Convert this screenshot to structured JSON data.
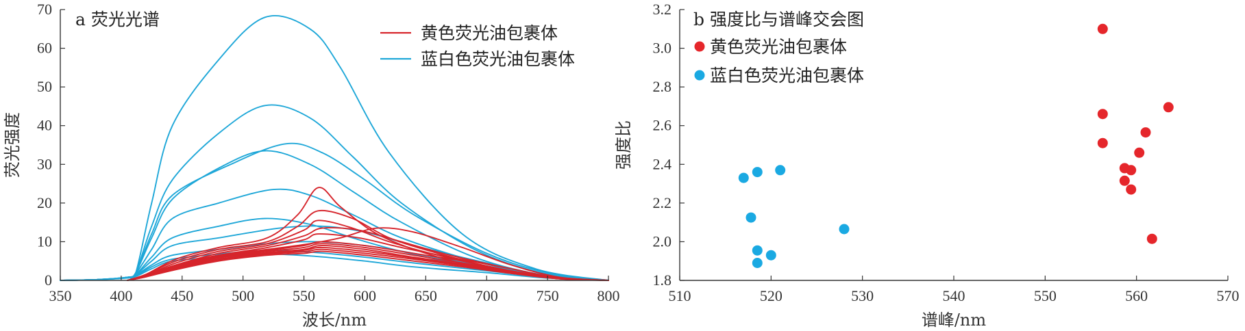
{
  "chart_data": [
    {
      "type": "line",
      "title": "a 荧光光谱",
      "xlabel": "波长/nm",
      "ylabel": "荧光强度",
      "xlim": [
        350,
        800
      ],
      "ylim": [
        0,
        70
      ],
      "xticks": [
        350,
        400,
        450,
        500,
        550,
        600,
        650,
        700,
        750,
        800
      ],
      "yticks": [
        0,
        10,
        20,
        30,
        40,
        50,
        60,
        70
      ],
      "legend_position": "top-right",
      "legend": [
        {
          "name": "黄色荧光油包裹体",
          "color": "#d6242b"
        },
        {
          "name": "蓝白色荧光油包裹体",
          "color": "#1ea7d8"
        }
      ],
      "groups": [
        {
          "name": "黄色荧光油包裹体",
          "color": "#d6242b",
          "series": [
            {
              "x": [
                405,
                420,
                445,
                480,
                520,
                545,
                562,
                580,
                610,
                650,
                700,
                750,
                800
              ],
              "y": [
                0,
                1.5,
                5.5,
                8.5,
                11,
                17,
                24,
                19,
                12,
                7,
                3,
                0.8,
                0
              ]
            },
            {
              "x": [
                405,
                420,
                445,
                480,
                520,
                545,
                562,
                590,
                620,
                660,
                710,
                760,
                800
              ],
              "y": [
                0,
                1.5,
                5,
                8,
                10,
                14,
                18,
                16,
                11,
                7,
                3,
                0.7,
                0
              ]
            },
            {
              "x": [
                405,
                420,
                445,
                480,
                520,
                550,
                562,
                590,
                620,
                660,
                710,
                760,
                800
              ],
              "y": [
                0,
                1.3,
                4.5,
                7.5,
                9.5,
                13,
                15.5,
                13.5,
                10,
                6.5,
                3,
                0.6,
                0
              ]
            },
            {
              "x": [
                405,
                420,
                445,
                480,
                520,
                550,
                565,
                595,
                630,
                670,
                720,
                760,
                800
              ],
              "y": [
                0,
                1.2,
                4,
                7,
                9,
                11.5,
                13.5,
                13,
                10,
                6.5,
                3,
                0.6,
                0
              ]
            },
            {
              "x": [
                405,
                420,
                445,
                480,
                520,
                550,
                562,
                595,
                630,
                670,
                720,
                760,
                800
              ],
              "y": [
                0,
                1.2,
                4,
                6.5,
                8.5,
                10.5,
                12,
                11,
                8.5,
                6,
                3,
                0.6,
                0
              ]
            },
            {
              "x": [
                405,
                420,
                445,
                480,
                520,
                555,
                580,
                610,
                640,
                680,
                720,
                760,
                800
              ],
              "y": [
                0,
                1.2,
                4,
                6.5,
                8,
                9.5,
                11,
                13.5,
                12.5,
                8.5,
                4,
                0.8,
                0
              ]
            },
            {
              "x": [
                405,
                420,
                445,
                480,
                520,
                550,
                565,
                600,
                640,
                680,
                720,
                760,
                800
              ],
              "y": [
                0,
                1.1,
                3.8,
                6.2,
                7.8,
                9,
                10,
                9,
                7,
                5,
                2.5,
                0.5,
                0
              ]
            },
            {
              "x": [
                405,
                420,
                445,
                480,
                520,
                550,
                565,
                600,
                640,
                680,
                720,
                760,
                800
              ],
              "y": [
                0,
                1,
                3.5,
                6,
                7.5,
                8.5,
                9.5,
                8.5,
                6.5,
                4.5,
                2.3,
                0.5,
                0
              ]
            },
            {
              "x": [
                405,
                420,
                445,
                480,
                520,
                550,
                565,
                600,
                640,
                680,
                720,
                760,
                800
              ],
              "y": [
                0,
                1,
                3.3,
                5.8,
                7.2,
                8,
                9,
                8,
                6,
                4.2,
                2.2,
                0.5,
                0
              ]
            },
            {
              "x": [
                405,
                420,
                445,
                480,
                520,
                550,
                565,
                600,
                640,
                680,
                720,
                760,
                800
              ],
              "y": [
                0,
                1,
                3.2,
                5.5,
                7,
                7.8,
                8.5,
                7.5,
                5.8,
                4,
                2,
                0.4,
                0
              ]
            },
            {
              "x": [
                405,
                420,
                445,
                480,
                520,
                550,
                565,
                600,
                640,
                680,
                720,
                760,
                800
              ],
              "y": [
                0,
                0.9,
                3,
                5.3,
                6.8,
                7.4,
                8,
                7,
                5.5,
                3.8,
                1.9,
                0.4,
                0
              ]
            },
            {
              "x": [
                405,
                420,
                445,
                480,
                520,
                550,
                565,
                600,
                640,
                680,
                720,
                760,
                800
              ],
              "y": [
                0,
                0.9,
                2.8,
                5,
                6.5,
                7,
                7.5,
                6.5,
                5,
                3.5,
                1.8,
                0.4,
                0
              ]
            }
          ]
        },
        {
          "name": "蓝白色荧光油包裹体",
          "color": "#1ea7d8",
          "series": [
            {
              "x": [
                350,
                380,
                405,
                412,
                425,
                442,
                480,
                518,
                555,
                580,
                620,
                680,
                740,
                800
              ],
              "y": [
                0,
                0.2,
                0.8,
                2,
                20,
                40,
                57,
                68,
                65,
                55,
                33,
                12,
                3,
                0
              ]
            },
            {
              "x": [
                350,
                380,
                405,
                412,
                425,
                442,
                480,
                518,
                555,
                590,
                630,
                690,
                745,
                800
              ],
              "y": [
                0,
                0.2,
                0.8,
                2,
                14,
                26,
                38,
                45.2,
                42,
                32,
                20,
                8,
                2,
                0
              ]
            },
            {
              "x": [
                350,
                380,
                405,
                412,
                425,
                442,
                490,
                535,
                565,
                600,
                640,
                700,
                750,
                800
              ],
              "y": [
                0,
                0.2,
                0.8,
                2,
                12,
                22,
                30,
                35.3,
                33,
                26,
                17,
                7,
                2,
                0
              ]
            },
            {
              "x": [
                350,
                380,
                405,
                412,
                425,
                442,
                480,
                518,
                555,
                590,
                630,
                690,
                745,
                800
              ],
              "y": [
                0,
                0.2,
                0.8,
                2,
                11,
                21,
                29,
                33.5,
                30,
                23,
                15,
                6,
                1.5,
                0
              ]
            },
            {
              "x": [
                350,
                380,
                405,
                412,
                425,
                442,
                480,
                525,
                555,
                590,
                630,
                690,
                745,
                800
              ],
              "y": [
                0,
                0.2,
                0.8,
                1.8,
                8,
                16,
                20,
                23.5,
                22,
                17,
                11,
                5,
                1.3,
                0
              ]
            },
            {
              "x": [
                350,
                380,
                405,
                412,
                425,
                442,
                480,
                518,
                555,
                590,
                630,
                690,
                745,
                800
              ],
              "y": [
                0,
                0.2,
                0.8,
                1.5,
                6,
                11,
                14,
                16,
                14.5,
                11,
                7.5,
                3.5,
                1,
                0
              ]
            },
            {
              "x": [
                350,
                380,
                405,
                412,
                425,
                442,
                480,
                530,
                565,
                600,
                640,
                700,
                750,
                800
              ],
              "y": [
                0,
                0.2,
                0.8,
                1.5,
                5,
                9,
                11,
                13.5,
                14,
                12.5,
                9,
                4.5,
                1.2,
                0
              ]
            },
            {
              "x": [
                350,
                380,
                405,
                412,
                425,
                442,
                480,
                520,
                560,
                600,
                640,
                700,
                750,
                800
              ],
              "y": [
                0,
                0.2,
                0.7,
                1.3,
                4,
                6.5,
                8,
                9.5,
                10,
                9,
                7,
                3.5,
                1,
                0
              ]
            },
            {
              "x": [
                350,
                380,
                405,
                412,
                425,
                442,
                480,
                520,
                560,
                600,
                640,
                700,
                750,
                800
              ],
              "y": [
                0,
                0.2,
                0.7,
                1.2,
                3.5,
                5.5,
                6.8,
                7.8,
                7.2,
                6,
                4.5,
                2.5,
                0.8,
                0
              ]
            },
            {
              "x": [
                350,
                380,
                405,
                412,
                425,
                442,
                480,
                520,
                560,
                600,
                640,
                700,
                750,
                800
              ],
              "y": [
                0,
                0.2,
                0.6,
                1,
                3,
                5,
                6,
                6.8,
                6.2,
                5,
                3.5,
                2,
                0.6,
                0
              ]
            }
          ]
        }
      ]
    },
    {
      "type": "scatter",
      "title": "b 强度比与谱峰交会图",
      "xlabel": "谱峰/nm",
      "ylabel": "强度比",
      "xlim": [
        510,
        570
      ],
      "ylim": [
        1.8,
        3.2
      ],
      "xticks": [
        510,
        520,
        530,
        540,
        550,
        560,
        570
      ],
      "yticks": [
        1.8,
        2.0,
        2.2,
        2.4,
        2.6,
        2.8,
        3.0,
        3.2
      ],
      "legend_position": "top-left",
      "series": [
        {
          "name": "黄色荧光油包裹体",
          "color": "#e5262b",
          "points": [
            [
              556.3,
              3.1
            ],
            [
              556.3,
              2.66
            ],
            [
              556.3,
              2.51
            ],
            [
              563.5,
              2.695
            ],
            [
              561.0,
              2.565
            ],
            [
              560.3,
              2.46
            ],
            [
              558.7,
              2.38
            ],
            [
              559.4,
              2.37
            ],
            [
              558.7,
              2.315
            ],
            [
              559.4,
              2.27
            ],
            [
              561.7,
              2.015
            ]
          ]
        },
        {
          "name": "蓝白色荧光油包裹体",
          "color": "#1aa9e2",
          "points": [
            [
              517.0,
              2.33
            ],
            [
              518.5,
              2.36
            ],
            [
              521.0,
              2.37
            ],
            [
              517.8,
              2.125
            ],
            [
              528.0,
              2.065
            ],
            [
              518.5,
              1.955
            ],
            [
              520.0,
              1.93
            ],
            [
              518.5,
              1.89
            ]
          ]
        }
      ]
    }
  ]
}
